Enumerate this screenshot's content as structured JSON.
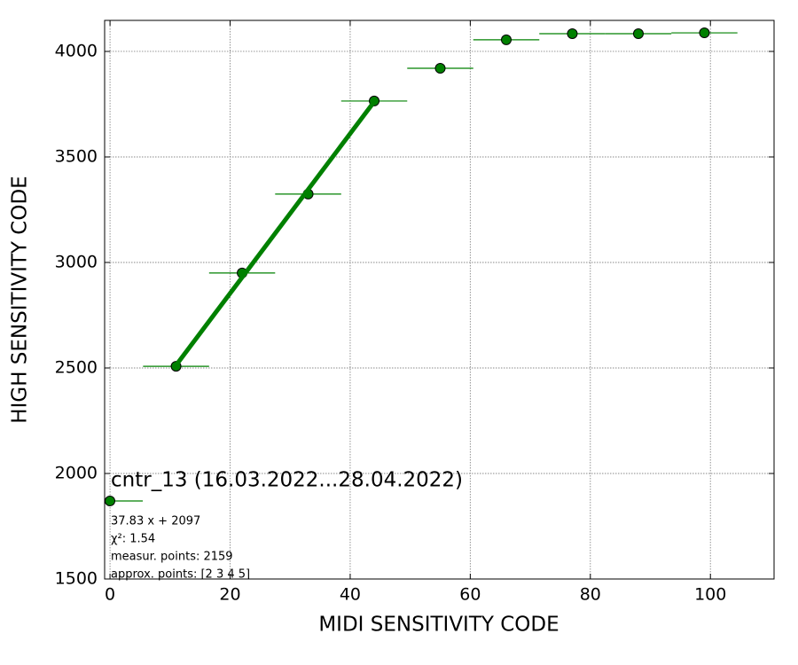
{
  "chart_data": {
    "type": "errorbar",
    "xlabel": "MIDI SENSITIVITY CODE",
    "ylabel": "HIGH SENSITIVITY CODE",
    "xlim": [
      -0.9,
      110.6
    ],
    "ylim": [
      1500,
      4147
    ],
    "xticks": [
      0,
      20,
      40,
      60,
      80,
      100
    ],
    "yticks": [
      1500,
      2000,
      2500,
      3000,
      3500,
      4000
    ],
    "grid": true,
    "legend": "lower left",
    "series": [
      {
        "name": "cntr_13 (16.03.2022...28.04.2022)",
        "color": "#008000",
        "x": [
          11,
          22,
          33,
          44,
          55,
          66,
          77,
          88,
          99
        ],
        "values": [
          2508,
          2950,
          3324,
          3765,
          3920,
          4055,
          4084,
          4084,
          4088
        ],
        "xerr": [
          5.5,
          5.5,
          5.5,
          5.5,
          5.5,
          5.5,
          5.5,
          5.5,
          5.5
        ]
      },
      {
        "type": "line",
        "color": "#008000",
        "x": [
          11,
          44
        ],
        "values": [
          2513,
          3762
        ]
      }
    ],
    "annotations": [
      "37.83 x + 2097",
      "χ²: 1.54",
      "measur. points: 2159",
      "approx. points: [2 3 4 5]"
    ]
  }
}
